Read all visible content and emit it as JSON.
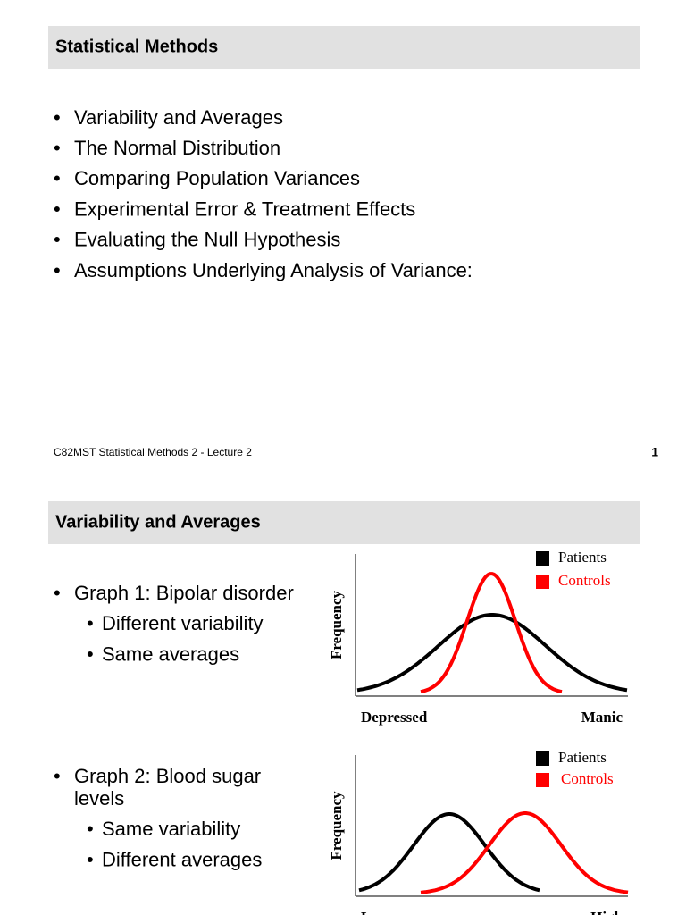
{
  "slides": [
    {
      "title": "Statistical Methods",
      "bullets": [
        "Variability and Averages",
        "The Normal Distribution",
        "Comparing Population Variances",
        "Experimental Error & Treatment Effects",
        "Evaluating the Null Hypothesis",
        "Assumptions Underlying Analysis of Variance:"
      ],
      "footer": "C82MST Statistical Methods 2 - Lecture 2",
      "page": "1"
    },
    {
      "title": "Variability and Averages",
      "items": [
        {
          "text": [
            "Graph 1: Bipolar disorder"
          ],
          "sub": [
            "Different variability",
            "Same averages"
          ]
        },
        {
          "text": [
            "Graph 2: Blood sugar",
            "levels"
          ],
          "sub": [
            "Same variability",
            "Different averages"
          ]
        }
      ],
      "graphs": [
        {
          "y_label": "Frequency",
          "legend": [
            "Patients",
            "Controls"
          ],
          "x_left": "Depressed",
          "x_right": "Manic"
        },
        {
          "y_label": "Frequency",
          "legend": [
            "Patients",
            "Controls"
          ],
          "x_left": "Low",
          "x_right": "High"
        }
      ]
    }
  ]
}
